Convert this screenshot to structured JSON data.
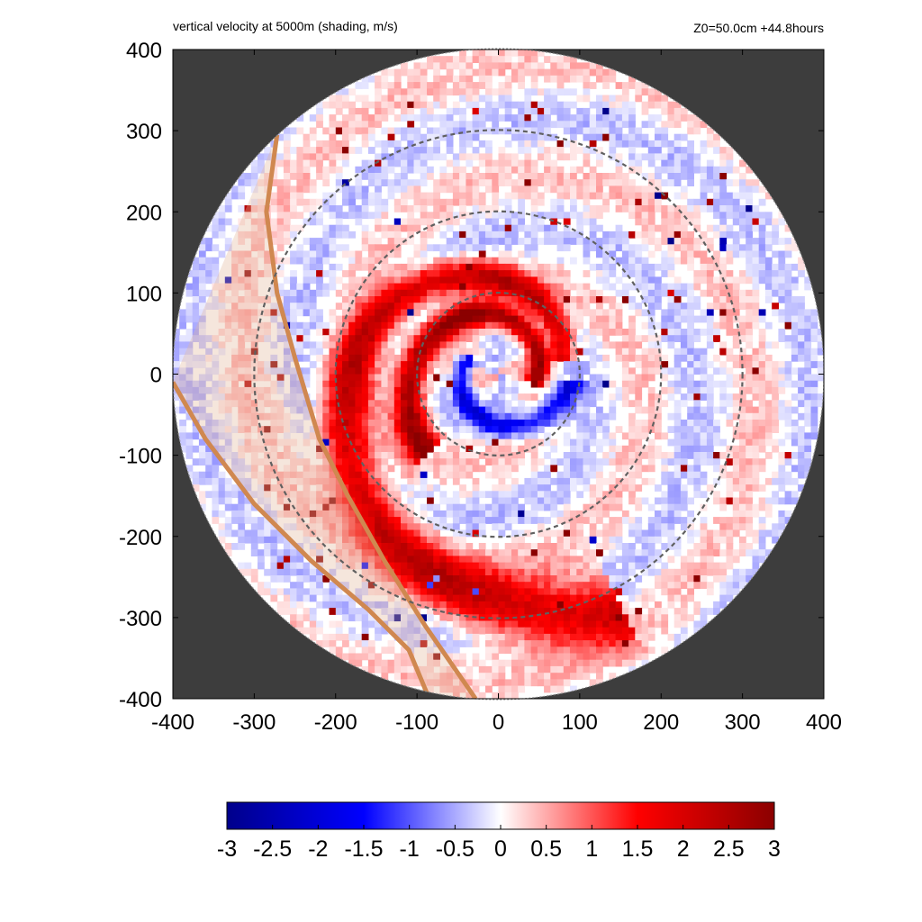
{
  "chart_data": {
    "type": "heatmap",
    "title": "vertical velocity at 5000m (shading, m/s)",
    "annotation_right": "Z0=50.0cm  +44.8hours",
    "xlim": [
      -400,
      400
    ],
    "ylim": [
      -400,
      400
    ],
    "x_ticks": [
      "-400",
      "-300",
      "-200",
      "-100",
      "0",
      "100",
      "200",
      "300",
      "400"
    ],
    "y_ticks": [
      "400",
      "300",
      "200",
      "100",
      "0",
      "-100",
      "-200",
      "-300",
      "-400"
    ],
    "domain_radius": 400,
    "dashed_circles_radii": [
      100,
      200,
      300
    ],
    "colorbar": {
      "min": -3,
      "max": 3,
      "ticks": [
        "-3",
        "-2.5",
        "-2",
        "-1.5",
        "-1",
        "-0.5",
        "0",
        "0.5",
        "1",
        "1.5",
        "2",
        "2.5",
        "3"
      ],
      "colors": [
        "#00008b",
        "#0000ff",
        "#ffffff",
        "#ff0000",
        "#8b0000"
      ]
    },
    "colors": {
      "outside_domain": "#3d3d3d",
      "coastline": "#d08850",
      "land_tint": "#e3b79a",
      "circle": "#606060"
    },
    "features": {
      "spiral_bands": [
        {
          "name": "inner eyewall updraft",
          "r0": 45,
          "theta0": -0.3,
          "k": 0.25,
          "sweep": 4.3,
          "sign": 1,
          "strength": 2.8
        },
        {
          "name": "inner downdraft band",
          "r0": 40,
          "theta0": 2.6,
          "k": 0.22,
          "sweep": 3.6,
          "sign": -1,
          "strength": 1.8
        },
        {
          "name": "outer rainband",
          "r0": 80,
          "theta0": 0.2,
          "k": 0.28,
          "sweep": 5.0,
          "sign": 1,
          "strength": 2.2
        }
      ],
      "coast_line_a": [
        [
          -272,
          295
        ],
        [
          -285,
          200
        ],
        [
          -272,
          100
        ],
        [
          -250,
          20
        ],
        [
          -220,
          -80
        ],
        [
          -185,
          -150
        ],
        [
          -140,
          -230
        ],
        [
          -90,
          -310
        ],
        [
          -28,
          -400
        ]
      ],
      "coast_line_b": [
        [
          -400,
          -10
        ],
        [
          -360,
          -80
        ],
        [
          -300,
          -160
        ],
        [
          -230,
          -230
        ],
        [
          -160,
          -290
        ],
        [
          -110,
          -340
        ],
        [
          -85,
          -400
        ]
      ]
    }
  }
}
